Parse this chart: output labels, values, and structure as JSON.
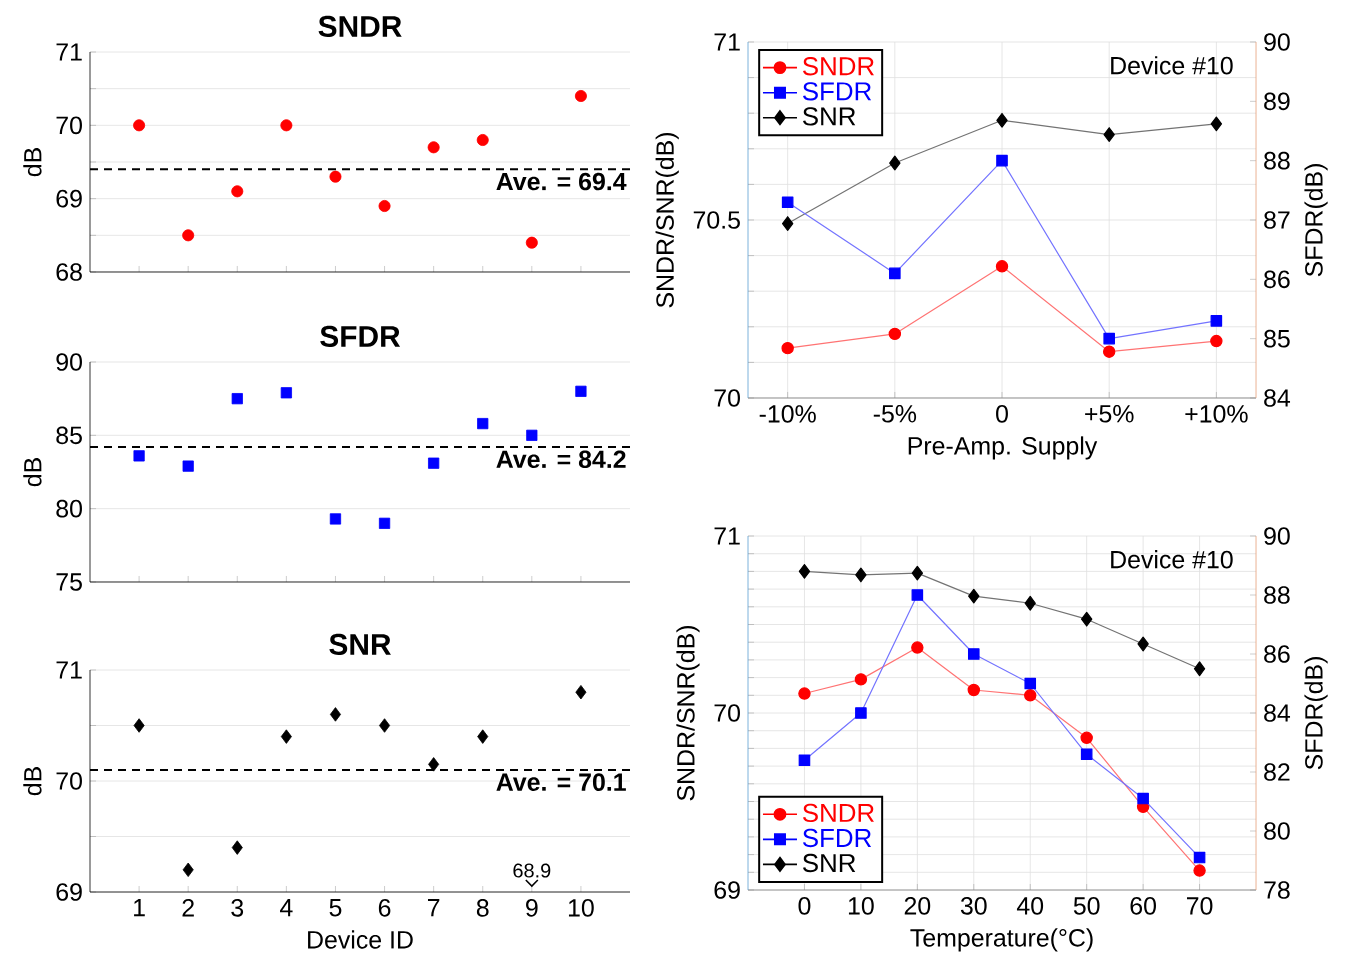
{
  "chart_data": [
    {
      "type": "scatter",
      "title": "SNDR",
      "ylabel": "dB",
      "x": [
        1,
        2,
        3,
        4,
        5,
        6,
        7,
        8,
        9,
        10
      ],
      "xlim": [
        0,
        11
      ],
      "xticks": [
        1,
        2,
        3,
        4,
        5,
        6,
        7,
        8,
        9,
        10
      ],
      "ylim": [
        68,
        71
      ],
      "yticks": [
        68,
        {
          "value": 68.5,
          "label": null
        },
        69,
        {
          "value": 69.5,
          "label": null
        },
        70,
        {
          "value": 70.5,
          "label": null
        },
        71
      ],
      "grid": "y",
      "tick_labels": "y",
      "marker": "circle",
      "series": [
        {
          "color": "#ff0000",
          "values": [
            70.0,
            68.5,
            69.1,
            70.0,
            69.3,
            68.9,
            69.7,
            69.8,
            68.4,
            70.4
          ]
        }
      ],
      "ref_lines": [
        {
          "axis": "y",
          "value": 69.4,
          "label": "Ave. = 69.4",
          "line_style": "dashed",
          "color": "#000000"
        }
      ]
    },
    {
      "type": "scatter",
      "title": "SFDR",
      "ylabel": "dB",
      "x": [
        1,
        2,
        3,
        4,
        5,
        6,
        7,
        8,
        9,
        10
      ],
      "xlim": [
        0,
        11
      ],
      "xticks": [
        1,
        2,
        3,
        4,
        5,
        6,
        7,
        8,
        9,
        10
      ],
      "ylim": [
        75,
        90
      ],
      "yticks": [
        75,
        80,
        85,
        90
      ],
      "grid": "y",
      "tick_labels": "y",
      "marker": "square",
      "series": [
        {
          "color": "#0000ff",
          "values": [
            83.6,
            82.9,
            87.5,
            87.9,
            79.3,
            79.0,
            83.1,
            85.8,
            85.0,
            88.0
          ]
        }
      ],
      "ref_lines": [
        {
          "axis": "y",
          "value": 84.2,
          "label": "Ave. = 84.2",
          "line_style": "dashed",
          "color": "#000000"
        }
      ]
    },
    {
      "type": "scatter",
      "title": "SNR",
      "ylabel": "dB",
      "xlabel": "Device ID",
      "x": [
        1,
        2,
        3,
        4,
        5,
        6,
        7,
        8,
        9,
        10
      ],
      "xlim": [
        0,
        11
      ],
      "xticks": [
        1,
        2,
        3,
        4,
        5,
        6,
        7,
        8,
        9,
        10
      ],
      "ylim": [
        69,
        71
      ],
      "yticks": [
        69,
        {
          "value": 69.5,
          "label": null
        },
        70,
        {
          "value": 70.5,
          "label": null
        },
        71
      ],
      "grid": "y",
      "marker": "diamond",
      "series": [
        {
          "color": "#000000",
          "values": [
            70.5,
            69.2,
            69.4,
            70.4,
            70.6,
            70.5,
            70.15,
            70.4,
            null,
            70.8
          ]
        }
      ],
      "ref_lines": [
        {
          "axis": "y",
          "value": 70.1,
          "label": "Ave. = 70.1",
          "line_style": "dashed",
          "color": "#000000"
        }
      ],
      "annotations": [
        "68.9"
      ]
    },
    {
      "type": "line",
      "xlabel": "Pre-Amp. Supply",
      "ylabel": "SNDR/SNR(dB)",
      "y2label": "SFDR(dB)",
      "categories": [
        "-10%",
        "-5%",
        "0",
        "+5%",
        "+10%"
      ],
      "ylim": [
        70,
        71
      ],
      "yticks": [
        70,
        {
          "value": 70.1,
          "label": null
        },
        {
          "value": 70.2,
          "label": null
        },
        {
          "value": 70.3,
          "label": null
        },
        {
          "value": 70.4,
          "label": null
        },
        70.5,
        {
          "value": 70.6,
          "label": null
        },
        {
          "value": 70.7,
          "label": null
        },
        {
          "value": 70.8,
          "label": null
        },
        {
          "value": 70.9,
          "label": null
        },
        71
      ],
      "y2lim": [
        84,
        90
      ],
      "y2ticks": [
        84,
        85,
        86,
        87,
        88,
        89,
        90
      ],
      "grid": true,
      "legend": "top left",
      "annotations": [
        "Device #10"
      ],
      "series": [
        {
          "name": "SNDR",
          "color": "#ff0000",
          "marker": "circle",
          "values": [
            70.14,
            70.18,
            70.37,
            70.13,
            70.16
          ]
        },
        {
          "name": "SFDR",
          "color": "#0000ff",
          "marker": "square",
          "axis": "y2",
          "values": [
            87.3,
            86.1,
            88.0,
            85.0,
            85.3
          ]
        },
        {
          "name": "SNR",
          "color": "#000000",
          "marker": "diamond",
          "values": [
            70.49,
            70.66,
            70.78,
            70.74,
            70.77
          ]
        }
      ]
    },
    {
      "type": "line",
      "xlabel": "Temperature(°C)",
      "ylabel": "SNDR/SNR(dB)",
      "y2label": "SFDR(dB)",
      "x": [
        0,
        10,
        20,
        30,
        40,
        50,
        60,
        70
      ],
      "xlim": [
        -10,
        80
      ],
      "xticks": [
        0,
        10,
        20,
        30,
        40,
        50,
        60,
        70
      ],
      "ylim": [
        69,
        71
      ],
      "yticks": [
        69,
        {
          "value": 69.1,
          "label": null
        },
        {
          "value": 69.2,
          "label": null
        },
        {
          "value": 69.3,
          "label": null
        },
        {
          "value": 69.4,
          "label": null
        },
        {
          "value": 69.5,
          "label": null
        },
        {
          "value": 69.6,
          "label": null
        },
        {
          "value": 69.7,
          "label": null
        },
        {
          "value": 69.8,
          "label": null
        },
        {
          "value": 69.9,
          "label": null
        },
        70,
        {
          "value": 70.1,
          "label": null
        },
        {
          "value": 70.2,
          "label": null
        },
        {
          "value": 70.3,
          "label": null
        },
        {
          "value": 70.4,
          "label": null
        },
        {
          "value": 70.5,
          "label": null
        },
        {
          "value": 70.6,
          "label": null
        },
        {
          "value": 70.7,
          "label": null
        },
        {
          "value": 70.8,
          "label": null
        },
        {
          "value": 70.9,
          "label": null
        },
        71
      ],
      "y2lim": [
        78,
        90
      ],
      "y2ticks": [
        78,
        80,
        82,
        84,
        86,
        88,
        90
      ],
      "grid": true,
      "legend": "bottom left",
      "annotations": [
        "Device #10"
      ],
      "series": [
        {
          "name": "SNDR",
          "color": "#ff0000",
          "marker": "circle",
          "values": [
            70.11,
            70.19,
            70.37,
            70.13,
            70.1,
            69.86,
            69.47,
            69.11
          ]
        },
        {
          "name": "SFDR",
          "color": "#0000ff",
          "marker": "square",
          "axis": "y2",
          "values": [
            82.4,
            84.0,
            88.0,
            86.0,
            85.0,
            82.6,
            81.1,
            79.1
          ]
        },
        {
          "name": "SNR",
          "color": "#000000",
          "marker": "diamond",
          "values": [
            70.8,
            70.78,
            70.79,
            70.66,
            70.62,
            70.53,
            70.39,
            70.25
          ]
        }
      ]
    }
  ]
}
